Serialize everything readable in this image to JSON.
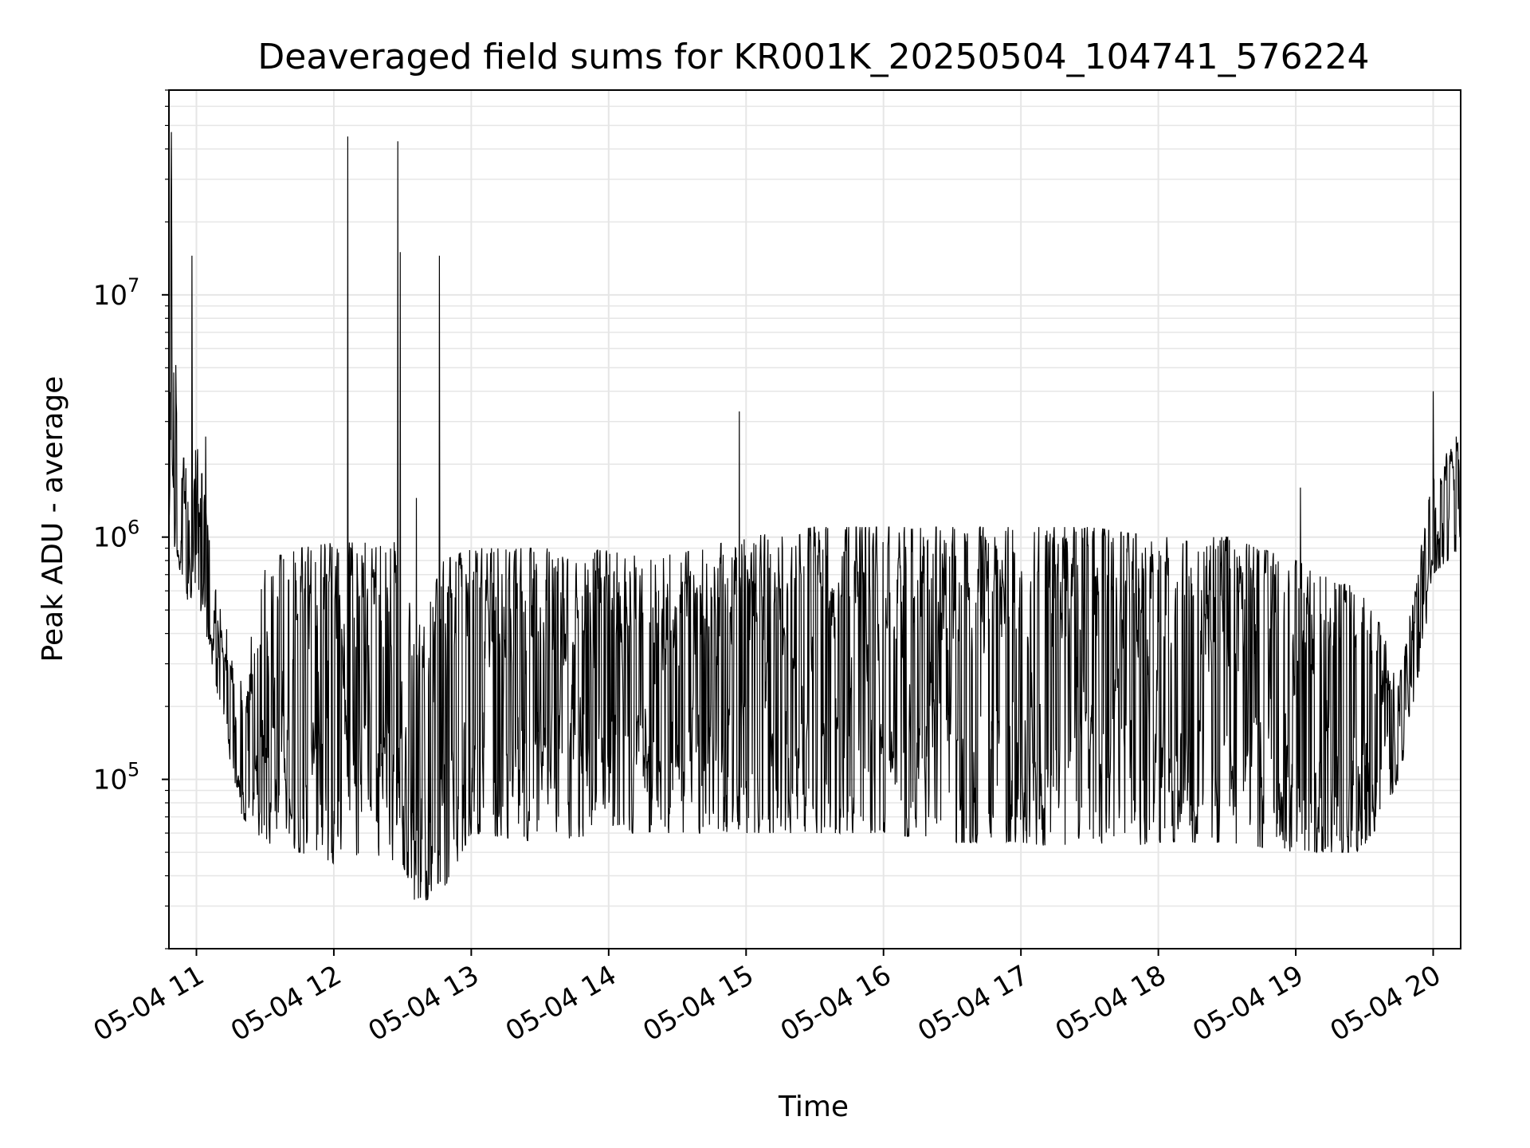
{
  "chart_data": {
    "type": "line",
    "title": "Deaveraged field sums for KR001K_20250504_104741_576224",
    "xlabel": "Time",
    "ylabel": "Peak ADU - average",
    "yscale": "log",
    "ylim": [
      20000,
      70000000
    ],
    "xlim": [
      "2025-05-04 10:48",
      "2025-05-04 20:12"
    ],
    "grid": true,
    "legend": "none",
    "line_color": "#000000",
    "x_ticks": [
      "05-04 11",
      "05-04 12",
      "05-04 13",
      "05-04 14",
      "05-04 15",
      "05-04 16",
      "05-04 17",
      "05-04 18",
      "05-04 19",
      "05-04 20"
    ],
    "y_ticks": [
      {
        "base": "10",
        "exp": "5"
      },
      {
        "base": "10",
        "exp": "6"
      },
      {
        "base": "10",
        "exp": "7"
      }
    ],
    "x_start": "2025-05-04 10:48",
    "x_end": "2025-05-04 20:12",
    "envelope": [
      {
        "t": "10:48",
        "low": 900000,
        "high": 50000000
      },
      {
        "t": "10:52",
        "low": 800000,
        "high": 2400000
      },
      {
        "t": "10:56",
        "low": 500000,
        "high": 2000000
      },
      {
        "t": "11:00",
        "low": 600000,
        "high": 2500000
      },
      {
        "t": "11:04",
        "low": 400000,
        "high": 1500000
      },
      {
        "t": "11:08",
        "low": 250000,
        "high": 700000
      },
      {
        "t": "11:12",
        "low": 150000,
        "high": 500000
      },
      {
        "t": "11:16",
        "low": 100000,
        "high": 300000
      },
      {
        "t": "11:20",
        "low": 70000,
        "high": 250000
      },
      {
        "t": "11:30",
        "low": 55000,
        "high": 800000
      },
      {
        "t": "11:45",
        "low": 50000,
        "high": 900000
      },
      {
        "t": "12:00",
        "low": 45000,
        "high": 950000
      },
      {
        "t": "12:15",
        "low": 50000,
        "high": 950000
      },
      {
        "t": "12:30",
        "low": 45000,
        "high": 1000000
      },
      {
        "t": "12:36",
        "low": 30000,
        "high": 400000
      },
      {
        "t": "12:48",
        "low": 35000,
        "high": 800000
      },
      {
        "t": "13:00",
        "low": 60000,
        "high": 900000
      },
      {
        "t": "13:30",
        "low": 55000,
        "high": 900000
      },
      {
        "t": "14:00",
        "low": 60000,
        "high": 880000
      },
      {
        "t": "14:30",
        "low": 60000,
        "high": 850000
      },
      {
        "t": "15:00",
        "low": 60000,
        "high": 1000000
      },
      {
        "t": "15:30",
        "low": 60000,
        "high": 1100000
      },
      {
        "t": "16:00",
        "low": 60000,
        "high": 1100000
      },
      {
        "t": "16:30",
        "low": 55000,
        "high": 1100000
      },
      {
        "t": "17:00",
        "low": 55000,
        "high": 1100000
      },
      {
        "t": "17:30",
        "low": 50000,
        "high": 1100000
      },
      {
        "t": "18:00",
        "low": 55000,
        "high": 1000000
      },
      {
        "t": "18:30",
        "low": 55000,
        "high": 1000000
      },
      {
        "t": "19:00",
        "low": 50000,
        "high": 800000
      },
      {
        "t": "19:30",
        "low": 50000,
        "high": 600000
      },
      {
        "t": "19:45",
        "low": 100000,
        "high": 300000
      },
      {
        "t": "19:52",
        "low": 200000,
        "high": 600000
      },
      {
        "t": "20:00",
        "low": 700000,
        "high": 2000000
      },
      {
        "t": "20:12",
        "low": 900000,
        "high": 2500000
      }
    ],
    "spikes": [
      {
        "t": "10:48",
        "value": 48000000
      },
      {
        "t": "10:49",
        "value": 47000000
      },
      {
        "t": "10:58",
        "value": 14500000
      },
      {
        "t": "11:04",
        "value": 2600000
      },
      {
        "t": "12:06",
        "value": 45000000
      },
      {
        "t": "12:28",
        "value": 43000000
      },
      {
        "t": "12:29",
        "value": 15000000
      },
      {
        "t": "12:36",
        "value": 1450000
      },
      {
        "t": "12:46",
        "value": 14500000
      },
      {
        "t": "14:57",
        "value": 3300000
      },
      {
        "t": "19:02",
        "value": 1600000
      },
      {
        "t": "20:00",
        "value": 4000000
      },
      {
        "t": "20:10",
        "value": 2600000
      }
    ]
  }
}
